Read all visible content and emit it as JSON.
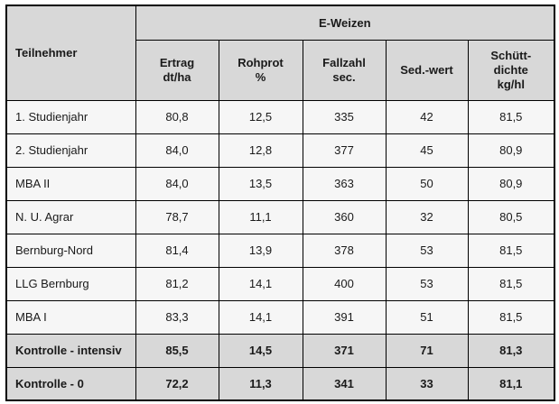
{
  "table": {
    "corner_header": "Teilnehmer",
    "group_header": "E-Weizen",
    "columns": [
      {
        "name": "ertrag",
        "lines": [
          "Ertrag",
          "dt/ha"
        ]
      },
      {
        "name": "rohprot",
        "lines": [
          "Rohprot",
          "%"
        ]
      },
      {
        "name": "fallzahl",
        "lines": [
          "Fallzahl",
          "sec."
        ]
      },
      {
        "name": "sed-wert",
        "lines": [
          "Sed.-wert"
        ]
      },
      {
        "name": "schuettdichte",
        "lines": [
          "Schütt-",
          "dichte",
          "kg/hl"
        ]
      }
    ],
    "rows": [
      {
        "label": "1. Studienjahr",
        "values": [
          "80,8",
          "12,5",
          "335",
          "42",
          "81,5"
        ],
        "control": false
      },
      {
        "label": "2. Studienjahr",
        "values": [
          "84,0",
          "12,8",
          "377",
          "45",
          "80,9"
        ],
        "control": false
      },
      {
        "label": "MBA II",
        "values": [
          "84,0",
          "13,5",
          "363",
          "50",
          "80,9"
        ],
        "control": false
      },
      {
        "label": "N. U. Agrar",
        "values": [
          "78,7",
          "11,1",
          "360",
          "32",
          "80,5"
        ],
        "control": false
      },
      {
        "label": "Bernburg-Nord",
        "values": [
          "81,4",
          "13,9",
          "378",
          "53",
          "81,5"
        ],
        "control": false
      },
      {
        "label": "LLG Bernburg",
        "values": [
          "81,2",
          "14,1",
          "400",
          "53",
          "81,5"
        ],
        "control": false
      },
      {
        "label": "MBA I",
        "values": [
          "83,3",
          "14,1",
          "391",
          "51",
          "81,5"
        ],
        "control": false
      },
      {
        "label": "Kontrolle - intensiv",
        "values": [
          "85,5",
          "14,5",
          "371",
          "71",
          "81,3"
        ],
        "control": true
      },
      {
        "label": "Kontrolle - 0",
        "values": [
          "72,2",
          "11,3",
          "341",
          "33",
          "81,1"
        ],
        "control": true
      }
    ],
    "colors": {
      "header_bg": "#d8d8d8",
      "control_row_bg": "#d8d8d8",
      "body_bg": "#f6f6f6",
      "border": "#000000",
      "text": "#1a1a1a"
    }
  }
}
